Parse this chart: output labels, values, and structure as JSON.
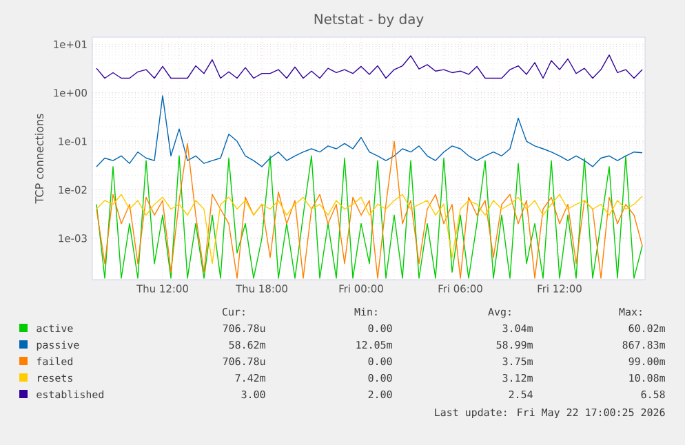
{
  "chart_data": {
    "type": "line",
    "title": "Netstat - by day",
    "ylabel": "TCP connections",
    "x": [
      "2026-05-21T08:00",
      "2026-05-21T08:30",
      "2026-05-21T09:00",
      "2026-05-21T09:30",
      "2026-05-21T10:00",
      "2026-05-21T10:30",
      "2026-05-21T11:00",
      "2026-05-21T11:30",
      "2026-05-21T12:00",
      "2026-05-21T12:30",
      "2026-05-21T13:00",
      "2026-05-21T13:30",
      "2026-05-21T14:00",
      "2026-05-21T14:30",
      "2026-05-21T15:00",
      "2026-05-21T15:30",
      "2026-05-21T16:00",
      "2026-05-21T16:30",
      "2026-05-21T17:00",
      "2026-05-21T17:30",
      "2026-05-21T18:00",
      "2026-05-21T18:30",
      "2026-05-21T19:00",
      "2026-05-21T19:30",
      "2026-05-21T20:00",
      "2026-05-21T20:30",
      "2026-05-21T21:00",
      "2026-05-21T21:30",
      "2026-05-21T22:00",
      "2026-05-21T22:30",
      "2026-05-21T23:00",
      "2026-05-21T23:30",
      "2026-05-22T00:00",
      "2026-05-22T00:30",
      "2026-05-22T01:00",
      "2026-05-22T01:30",
      "2026-05-22T02:00",
      "2026-05-22T02:30",
      "2026-05-22T03:00",
      "2026-05-22T03:30",
      "2026-05-22T04:00",
      "2026-05-22T04:30",
      "2026-05-22T05:00",
      "2026-05-22T05:30",
      "2026-05-22T06:00",
      "2026-05-22T06:30",
      "2026-05-22T07:00",
      "2026-05-22T07:30",
      "2026-05-22T08:00",
      "2026-05-22T08:30",
      "2026-05-22T09:00",
      "2026-05-22T09:30",
      "2026-05-22T10:00",
      "2026-05-22T10:30",
      "2026-05-22T11:00",
      "2026-05-22T11:30",
      "2026-05-22T12:00",
      "2026-05-22T12:30",
      "2026-05-22T13:00",
      "2026-05-22T13:30",
      "2026-05-22T14:00",
      "2026-05-22T14:30",
      "2026-05-22T15:00",
      "2026-05-22T15:30",
      "2026-05-22T16:00",
      "2026-05-22T16:30",
      "2026-05-22T17:00"
    ],
    "series": [
      {
        "name": "active",
        "color": "#00cc00",
        "values": [
          0.005,
          0.00015,
          0.03,
          0.00015,
          0.002,
          0.00015,
          0.04,
          0.0003,
          0.003,
          0.00015,
          0.05,
          0.00015,
          0.002,
          0.00015,
          0.003,
          0.00015,
          0.045,
          0.0005,
          0.002,
          0.00015,
          0.001,
          0.05,
          0.00015,
          0.002,
          0.00015,
          0.003,
          0.05,
          0.00015,
          0.002,
          0.00015,
          0.045,
          0.00015,
          0.002,
          0.0003,
          0.04,
          0.00015,
          0.003,
          0.00015,
          0.04,
          0.00015,
          0.002,
          0.00015,
          0.045,
          0.0002,
          0.003,
          0.00015,
          0.002,
          0.04,
          0.00015,
          0.003,
          0.00015,
          0.035,
          0.0003,
          0.002,
          0.00015,
          0.04,
          0.00015,
          0.003,
          0.00015,
          0.045,
          0.00015,
          0.002,
          0.03,
          0.00015,
          0.05,
          0.00015,
          0.0007
        ]
      },
      {
        "name": "passive",
        "color": "#0066b3",
        "values": [
          0.03,
          0.045,
          0.04,
          0.05,
          0.035,
          0.06,
          0.045,
          0.04,
          0.87,
          0.05,
          0.18,
          0.04,
          0.05,
          0.035,
          0.04,
          0.045,
          0.14,
          0.1,
          0.05,
          0.04,
          0.03,
          0.045,
          0.06,
          0.04,
          0.05,
          0.06,
          0.07,
          0.06,
          0.08,
          0.07,
          0.09,
          0.07,
          0.12,
          0.06,
          0.05,
          0.04,
          0.05,
          0.07,
          0.06,
          0.08,
          0.05,
          0.04,
          0.06,
          0.08,
          0.07,
          0.05,
          0.04,
          0.05,
          0.06,
          0.05,
          0.07,
          0.3,
          0.1,
          0.08,
          0.07,
          0.06,
          0.05,
          0.04,
          0.05,
          0.04,
          0.03,
          0.045,
          0.05,
          0.04,
          0.05,
          0.06,
          0.058
        ]
      },
      {
        "name": "failed",
        "color": "#ff8000",
        "values": [
          0.004,
          0.0003,
          0.008,
          0.002,
          0.005,
          0.0003,
          0.007,
          0.003,
          0.006,
          0.0002,
          0.006,
          0.09,
          0.003,
          0.0002,
          0.008,
          0.004,
          0.002,
          0.00015,
          0.007,
          0.003,
          0.005,
          0.0004,
          0.009,
          0.002,
          0.006,
          0.00015,
          0.004,
          0.008,
          0.002,
          0.005,
          0.0003,
          0.007,
          0.003,
          0.006,
          0.00015,
          0.005,
          0.1,
          0.002,
          0.006,
          0.0003,
          0.004,
          0.008,
          0.002,
          0.005,
          0.00015,
          0.007,
          0.003,
          0.006,
          0.0004,
          0.005,
          0.008,
          0.002,
          0.006,
          0.00015,
          0.004,
          0.007,
          0.002,
          0.005,
          0.0003,
          0.006,
          0.004,
          0.00015,
          0.007,
          0.002,
          0.005,
          0.003,
          0.0007
        ]
      },
      {
        "name": "resets",
        "color": "#ffcc00",
        "values": [
          0.004,
          0.006,
          0.005,
          0.008,
          0.004,
          0.006,
          0.003,
          0.005,
          0.007,
          0.004,
          0.005,
          0.003,
          0.006,
          0.004,
          0.0003,
          0.005,
          0.007,
          0.004,
          0.006,
          0.003,
          0.005,
          0.004,
          0.006,
          0.003,
          0.005,
          0.007,
          0.004,
          0.005,
          0.003,
          0.006,
          0.004,
          0.005,
          0.007,
          0.003,
          0.005,
          0.004,
          0.006,
          0.008,
          0.004,
          0.005,
          0.006,
          0.003,
          0.005,
          0.0004,
          0.004,
          0.006,
          0.005,
          0.003,
          0.006,
          0.004,
          0.005,
          0.007,
          0.004,
          0.006,
          0.003,
          0.005,
          0.008,
          0.004,
          0.005,
          0.006,
          0.004,
          0.005,
          0.003,
          0.006,
          0.004,
          0.005,
          0.0074
        ]
      },
      {
        "name": "established",
        "color": "#330099",
        "values": [
          3.2,
          2,
          2.6,
          2,
          2,
          2.7,
          3.0,
          2,
          3.5,
          2,
          2,
          2,
          3.6,
          2.5,
          4.8,
          2,
          2.7,
          2,
          3.3,
          2,
          2.5,
          2.5,
          3.0,
          2,
          3.4,
          2,
          2.8,
          2,
          3.2,
          2.6,
          3.0,
          2.5,
          3.5,
          2.4,
          3.6,
          2,
          3.0,
          3.6,
          5.8,
          3.1,
          3.8,
          2.8,
          3.0,
          2.6,
          2.8,
          2.4,
          3.5,
          2,
          2,
          2,
          3.0,
          3.6,
          2.4,
          4.2,
          2,
          4.6,
          3.0,
          5.0,
          2.5,
          3.2,
          2,
          3.0,
          6.0,
          2.6,
          3.0,
          2,
          3.0
        ]
      }
    ],
    "xlim": [
      "2026-05-21T07:45",
      "2026-05-22T17:10"
    ],
    "ylim": [
      0.00014,
      14
    ],
    "log": "y",
    "xticks": [
      {
        "value": "2026-05-21T12:00",
        "label": "Thu 12:00"
      },
      {
        "value": "2026-05-21T18:00",
        "label": "Thu 18:00"
      },
      {
        "value": "2026-05-22T00:00",
        "label": "Fri 00:00"
      },
      {
        "value": "2026-05-22T06:00",
        "label": "Fri 06:00"
      },
      {
        "value": "2026-05-22T12:00",
        "label": "Fri 12:00"
      }
    ],
    "yticks": [
      {
        "value": 0.001,
        "label": "1e-03"
      },
      {
        "value": 0.01,
        "label": "1e-02"
      },
      {
        "value": 0.1,
        "label": "1e-01"
      },
      {
        "value": 1,
        "label": "1e+00"
      },
      {
        "value": 10,
        "label": "1e+01"
      }
    ],
    "grid": true,
    "legend": "bottom",
    "marker": "none",
    "line_style": "solid",
    "annotations": [
      "Cur:",
      "Min:",
      "Avg:",
      "Max:",
      "706.78u",
      "0.00",
      "3.04m",
      "60.02m",
      "58.62m",
      "12.05m",
      "58.99m",
      "867.83m",
      "706.78u",
      "0.00",
      "3.75m",
      "99.00m",
      "7.42m",
      "0.00",
      "3.12m",
      "10.08m",
      "3.00",
      "2.00",
      "2.54",
      "6.58",
      "Last update: Fri May 22 17:00:25 2026"
    ]
  }
}
